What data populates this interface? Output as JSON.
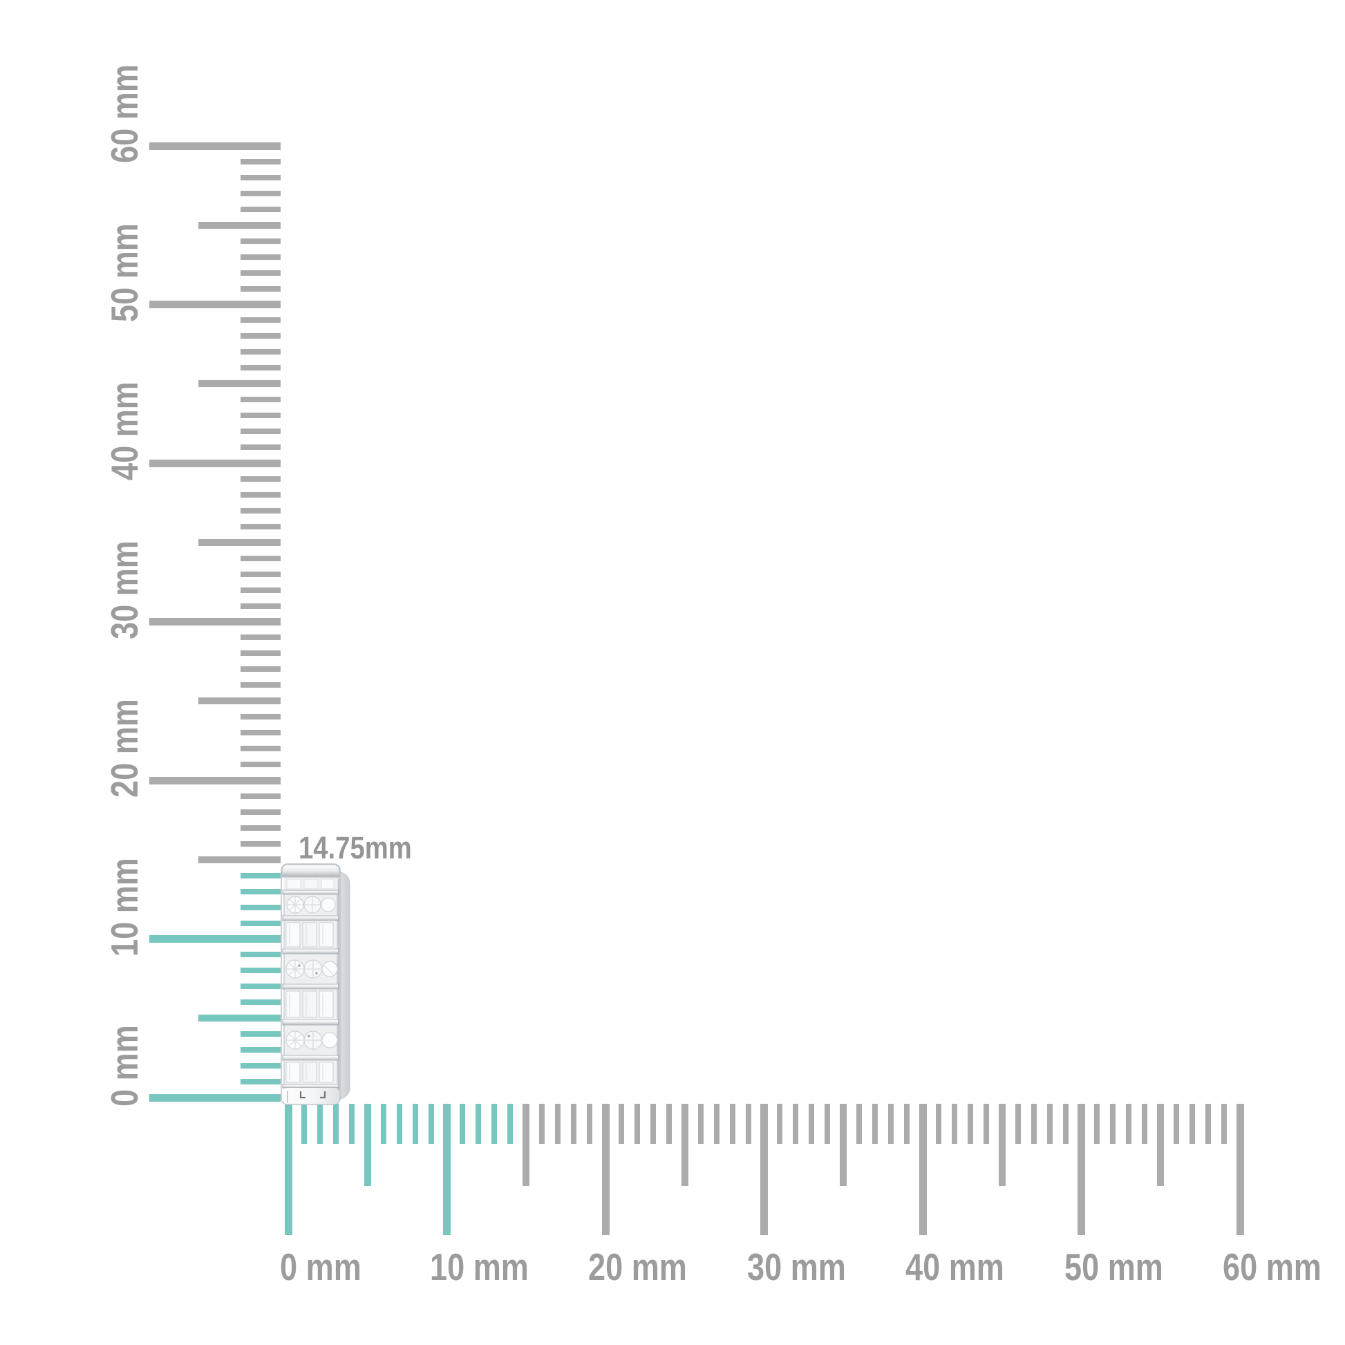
{
  "figure": {
    "dimension_label": "14.75mm",
    "item": "diamond-huggie-earring-side-view",
    "unit": "mm"
  },
  "colors": {
    "background": "#FFFFFF",
    "highlight_teal": "#77C6BF",
    "tick_gray": "#ABABAB",
    "label_gray": "#9C9C9C",
    "dim_label_gray": "#959595"
  },
  "vertical_ruler": {
    "unit": "mm",
    "min_mm": 0,
    "max_mm": 60,
    "minor_step_mm": 1,
    "half_step_mm": 5,
    "major_step_mm": 10,
    "highlight_from_mm": 0,
    "highlight_to_mm": 14.75,
    "labels": [
      {
        "mm": 0,
        "text": "0 mm"
      },
      {
        "mm": 10,
        "text": "10 mm"
      },
      {
        "mm": 20,
        "text": "20 mm"
      },
      {
        "mm": 30,
        "text": "30 mm"
      },
      {
        "mm": 40,
        "text": "40 mm"
      },
      {
        "mm": 50,
        "text": "50 mm"
      },
      {
        "mm": 60,
        "text": "60 mm"
      }
    ]
  },
  "horizontal_ruler": {
    "unit": "mm",
    "min_mm": 0,
    "max_mm": 60,
    "minor_step_mm": 1,
    "half_step_mm": 5,
    "major_step_mm": 10,
    "highlight_from_mm": 0,
    "highlight_to_mm": 14.75,
    "labels": [
      {
        "mm": 0,
        "text": "0 mm"
      },
      {
        "mm": 10,
        "text": "10 mm"
      },
      {
        "mm": 20,
        "text": "20 mm"
      },
      {
        "mm": 30,
        "text": "30 mm"
      },
      {
        "mm": 40,
        "text": "40 mm"
      },
      {
        "mm": 50,
        "text": "50 mm"
      },
      {
        "mm": 60,
        "text": "60 mm"
      }
    ]
  }
}
